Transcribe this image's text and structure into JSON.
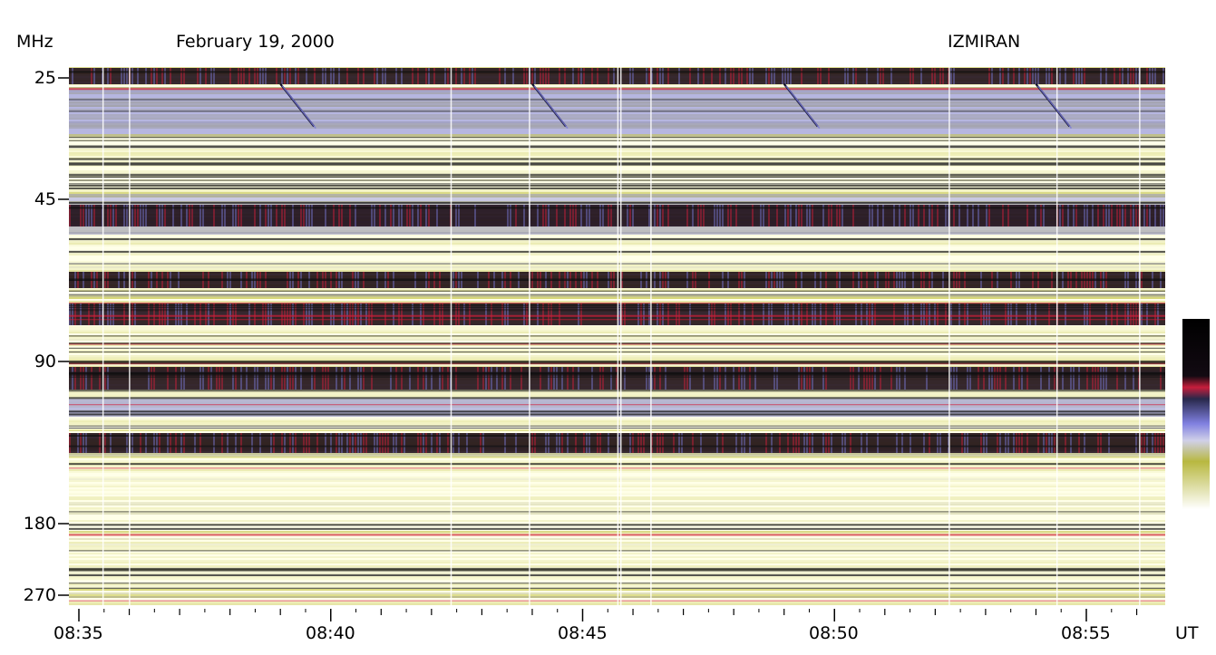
{
  "header": {
    "unit_label": "MHz",
    "date": "February 19, 2000",
    "observatory": "IZMIRAN"
  },
  "axis": {
    "time_unit": "UT",
    "freq_ticks": [
      "25",
      "45",
      "90",
      "180",
      "270"
    ],
    "time_ticks": [
      "08:35",
      "08:40",
      "08:45",
      "08:50",
      "08:55"
    ]
  },
  "colors": {
    "background": "#ffffff",
    "quiet": "#ffffe8",
    "weak": "#c8c850",
    "medium": "#7a7ad8",
    "strong": "#1a0a14",
    "burst": "#d21e3c"
  },
  "chart_data": {
    "type": "heatmap",
    "title": "February 19, 2000",
    "xlabel": "UT",
    "ylabel": "MHz",
    "x_range": [
      "08:35",
      "08:56:30"
    ],
    "y_ticks": [
      25,
      45,
      90,
      180,
      270
    ],
    "x_ticks": [
      "08:35",
      "08:40",
      "08:45",
      "08:50",
      "08:55"
    ],
    "y_scale": "stepped by receiver band, frequency increasing downward",
    "colorbar": [
      "black",
      "red",
      "blue",
      "yellow",
      "white"
    ],
    "source": "IZMIRAN",
    "features": [
      {
        "kind": "drifting feature",
        "start": "08:39:00",
        "end": "08:39:40",
        "freq_range_mhz": [
          26,
          33
        ]
      },
      {
        "kind": "drifting feature",
        "start": "08:44:00",
        "end": "08:44:40",
        "freq_range_mhz": [
          26,
          33
        ]
      },
      {
        "kind": "drifting feature",
        "start": "08:49:00",
        "end": "08:49:40",
        "freq_range_mhz": [
          26,
          33
        ]
      },
      {
        "kind": "drifting feature",
        "start": "08:54:00",
        "end": "08:54:40",
        "freq_range_mhz": [
          26,
          33
        ]
      }
    ]
  }
}
